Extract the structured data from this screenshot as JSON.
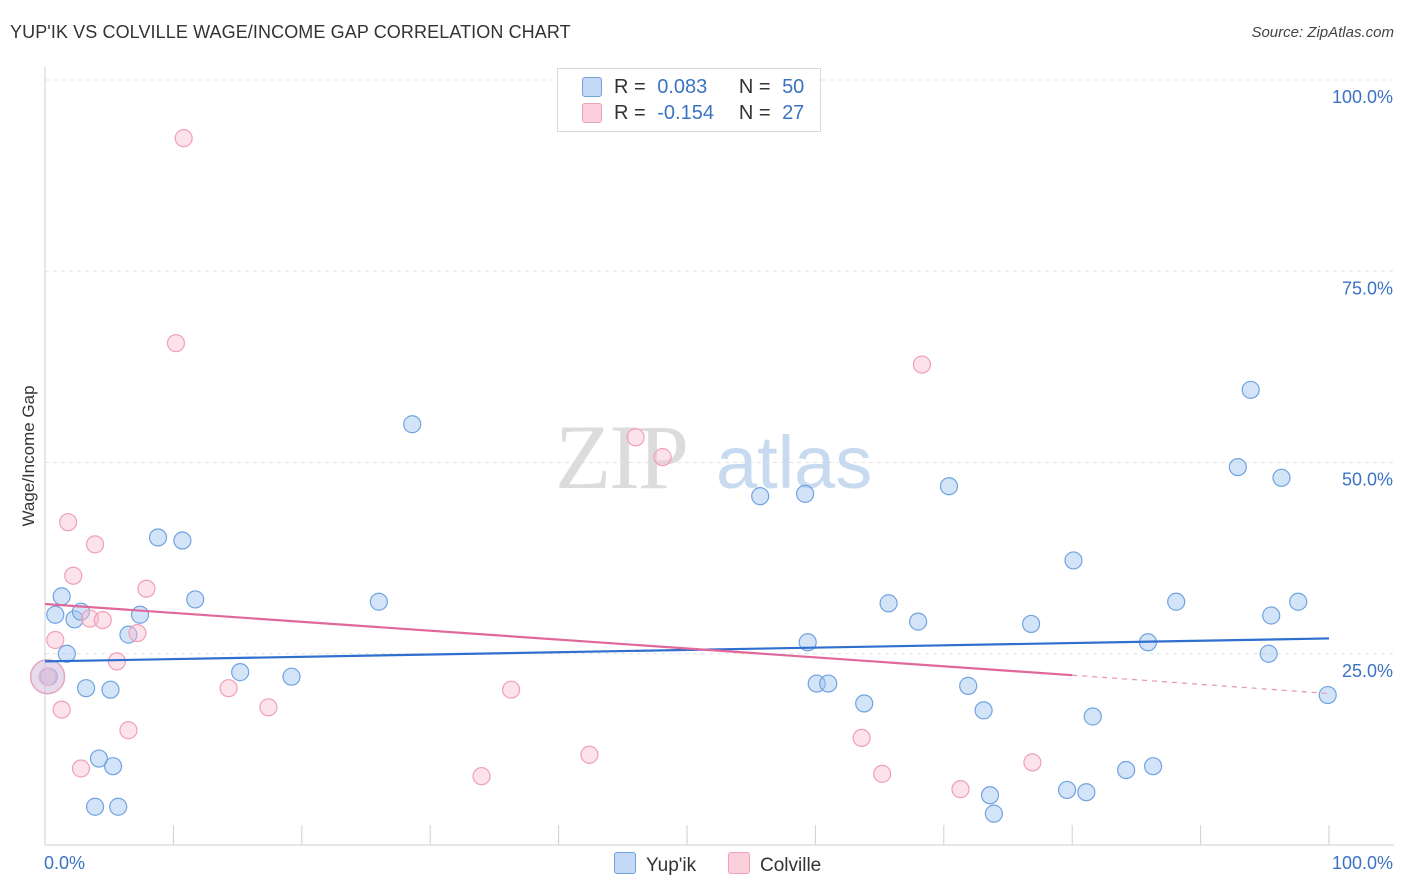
{
  "header": {
    "title": "YUP'IK VS COLVILLE WAGE/INCOME GAP CORRELATION CHART",
    "source": "Source: ZipAtlas.com"
  },
  "watermark": {
    "zip": "ZIP",
    "atlas": "atlas"
  },
  "legend": {
    "r_label": "R =",
    "n_label": "N =",
    "rows": [
      {
        "r": "0.083",
        "n": "50",
        "color": "#6fa3e0"
      },
      {
        "r": "-0.154",
        "n": "27",
        "color": "#f0a0b8"
      }
    ]
  },
  "chart_data": {
    "type": "scatter",
    "title": "YUP'IK VS COLVILLE WAGE/INCOME GAP CORRELATION CHART",
    "ylabel": "Wage/Income Gap",
    "xlabel": "",
    "xlim": [
      0,
      100
    ],
    "ylim": [
      0,
      100
    ],
    "x_tick_labels": [
      "0.0%",
      "100.0%"
    ],
    "y_tick_labels": [
      "25.0%",
      "50.0%",
      "75.0%",
      "100.0%"
    ],
    "y_ticks": [
      25,
      50,
      75,
      100
    ],
    "grid": true,
    "legend_position": "top-center",
    "series": [
      {
        "name": "Yup'ik",
        "color": "#6fa3e0",
        "trend": {
          "x": [
            0,
            100
          ],
          "y": [
            24.0,
            27.0
          ]
        },
        "points": [
          [
            0.3,
            22.0
          ],
          [
            0.8,
            30.1
          ],
          [
            1.3,
            32.5
          ],
          [
            1.7,
            25.0
          ],
          [
            2.3,
            29.5
          ],
          [
            2.8,
            30.5
          ],
          [
            3.2,
            20.5
          ],
          [
            3.9,
            5.0
          ],
          [
            4.2,
            11.3
          ],
          [
            5.1,
            20.3
          ],
          [
            5.3,
            10.3
          ],
          [
            5.7,
            5.0
          ],
          [
            6.5,
            27.5
          ],
          [
            7.4,
            30.1
          ],
          [
            8.8,
            40.2
          ],
          [
            10.7,
            39.8
          ],
          [
            11.7,
            32.1
          ],
          [
            15.2,
            22.6
          ],
          [
            19.2,
            22.0
          ],
          [
            26.0,
            31.8
          ],
          [
            28.6,
            55.0
          ],
          [
            55.7,
            45.6
          ],
          [
            59.2,
            45.9
          ],
          [
            59.4,
            26.5
          ],
          [
            60.1,
            21.1
          ],
          [
            61.0,
            21.1
          ],
          [
            63.8,
            18.5
          ],
          [
            65.7,
            31.6
          ],
          [
            68.0,
            29.2
          ],
          [
            70.4,
            46.9
          ],
          [
            71.9,
            20.8
          ],
          [
            73.1,
            17.6
          ],
          [
            73.6,
            6.5
          ],
          [
            73.9,
            4.1
          ],
          [
            76.8,
            28.9
          ],
          [
            79.6,
            7.2
          ],
          [
            80.1,
            37.2
          ],
          [
            81.1,
            6.9
          ],
          [
            81.6,
            16.8
          ],
          [
            84.2,
            9.8
          ],
          [
            85.9,
            26.5
          ],
          [
            86.3,
            10.3
          ],
          [
            88.1,
            31.8
          ],
          [
            92.9,
            49.4
          ],
          [
            93.9,
            59.5
          ],
          [
            95.3,
            25.0
          ],
          [
            95.5,
            30.0
          ],
          [
            96.3,
            48.0
          ],
          [
            97.6,
            31.8
          ],
          [
            99.9,
            19.6
          ]
        ]
      },
      {
        "name": "Colville",
        "color": "#f0a0b8",
        "trend": {
          "x": [
            0,
            80
          ],
          "y": [
            31.5,
            22.2
          ]
        },
        "trend_extension": {
          "x": [
            80,
            100
          ],
          "y": [
            22.2,
            19.8
          ]
        },
        "points": [
          [
            0.2,
            22.0
          ],
          [
            0.8,
            26.8
          ],
          [
            1.3,
            17.7
          ],
          [
            1.8,
            42.2
          ],
          [
            2.2,
            35.2
          ],
          [
            2.8,
            10.0
          ],
          [
            3.5,
            29.6
          ],
          [
            3.9,
            39.3
          ],
          [
            4.5,
            29.4
          ],
          [
            5.6,
            24.0
          ],
          [
            6.5,
            15.0
          ],
          [
            7.2,
            27.7
          ],
          [
            7.9,
            33.5
          ],
          [
            10.2,
            65.6
          ],
          [
            10.8,
            92.4
          ],
          [
            14.3,
            20.5
          ],
          [
            17.4,
            18.0
          ],
          [
            34.0,
            9.0
          ],
          [
            36.3,
            20.3
          ],
          [
            42.4,
            11.8
          ],
          [
            46.0,
            53.3
          ],
          [
            48.1,
            50.7
          ],
          [
            63.6,
            14.0
          ],
          [
            65.2,
            9.3
          ],
          [
            68.3,
            62.8
          ],
          [
            71.3,
            7.3
          ],
          [
            76.9,
            10.8
          ]
        ]
      }
    ]
  }
}
